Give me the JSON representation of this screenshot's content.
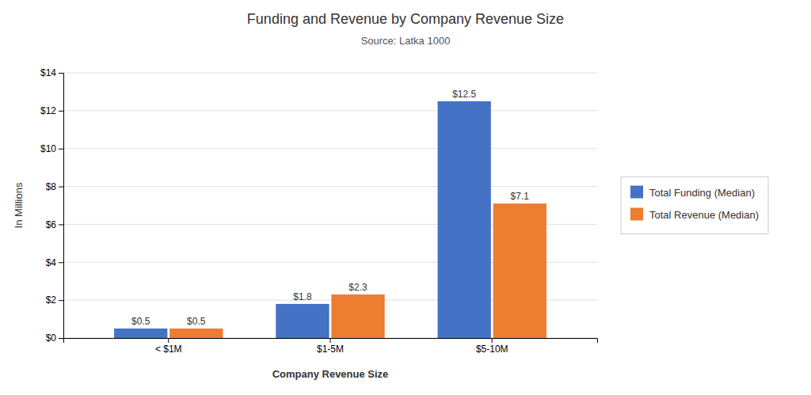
{
  "chart_data": {
    "type": "bar",
    "title": "Funding and Revenue by Company Revenue Size",
    "subtitle": "Source:  Latka 1000",
    "xlabel": "Company Revenue Size",
    "ylabel": "In Millions",
    "categories": [
      "< $1M",
      "$1-5M",
      "$5-10M"
    ],
    "series": [
      {
        "name": "Total Funding (Median)",
        "color": "#4472C4",
        "values": [
          0.5,
          1.8,
          12.5
        ],
        "value_labels": [
          "$0.5",
          "$1.8",
          "$12.5"
        ]
      },
      {
        "name": "Total Revenue (Median)",
        "color": "#ED7D31",
        "values": [
          0.5,
          2.3,
          7.1
        ],
        "value_labels": [
          "$0.5",
          "$2.3",
          "$7.1"
        ]
      }
    ],
    "ylim": [
      0,
      14
    ],
    "yticks": [
      {
        "value": 0,
        "label": "$0"
      },
      {
        "value": 2,
        "label": "$2"
      },
      {
        "value": 4,
        "label": "$4"
      },
      {
        "value": 6,
        "label": "$6"
      },
      {
        "value": 8,
        "label": "$8"
      },
      {
        "value": 10,
        "label": "$10"
      },
      {
        "value": 12,
        "label": "$12"
      },
      {
        "value": 14,
        "label": "$14"
      }
    ],
    "grid": true,
    "legend": "right",
    "data_labels": true
  }
}
